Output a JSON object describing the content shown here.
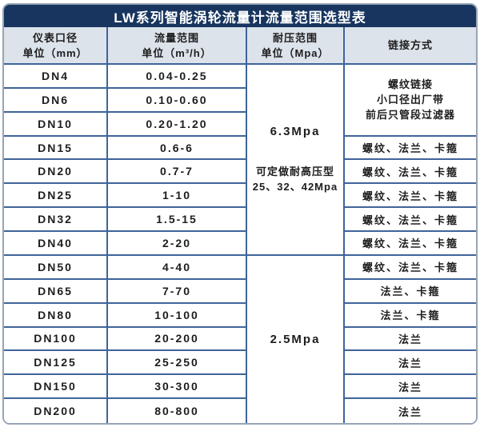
{
  "title": "LW系列智能涡轮流量计流量范围选型表",
  "header": {
    "diameter": [
      "仪表口径",
      "单位（mm）"
    ],
    "flow": [
      "流量范围",
      "单位（m³/h）"
    ],
    "pressure": [
      "耐压范围",
      "单位（Mpa）"
    ],
    "connection": [
      "链接方式"
    ]
  },
  "rows": [
    {
      "dn": "DN4",
      "flow": "0.04-0.25"
    },
    {
      "dn": "DN6",
      "flow": "0.10-0.60"
    },
    {
      "dn": "DN10",
      "flow": "0.20-1.20"
    },
    {
      "dn": "DN15",
      "flow": "0.6-6"
    },
    {
      "dn": "DN20",
      "flow": "0.7-7"
    },
    {
      "dn": "DN25",
      "flow": "1-10"
    },
    {
      "dn": "DN32",
      "flow": "1.5-15"
    },
    {
      "dn": "DN40",
      "flow": "2-20"
    },
    {
      "dn": "DN50",
      "flow": "4-40"
    },
    {
      "dn": "DN65",
      "flow": "7-70"
    },
    {
      "dn": "DN80",
      "flow": "10-100"
    },
    {
      "dn": "DN100",
      "flow": "20-200"
    },
    {
      "dn": "DN125",
      "flow": "25-250"
    },
    {
      "dn": "DN150",
      "flow": "30-300"
    },
    {
      "dn": "DN200",
      "flow": "80-800"
    }
  ],
  "pressure": {
    "high": {
      "value": "6.3Mpa",
      "note1": "可定做耐高压型",
      "note2": "25、32、42Mpa",
      "span_rows": 8
    },
    "low": {
      "value": "2.5Mpa",
      "span_rows": 7
    }
  },
  "connection": {
    "merged": {
      "lines": [
        "螺纹链接",
        "小口径出厂带",
        "前后只管段过滤器"
      ],
      "span_rows": 3
    },
    "cells": [
      "螺纹、法兰、卡箍",
      "螺纹、法兰、卡箍",
      "螺纹、法兰、卡箍",
      "螺纹、法兰、卡箍",
      "螺纹、法兰、卡箍",
      "螺纹、法兰、卡箍",
      "法兰、卡箍",
      "法兰、卡箍",
      "法兰",
      "法兰",
      "法兰",
      "法兰"
    ]
  },
  "colors": {
    "title_bg": "#17355f",
    "title_text": "#ffffff",
    "header_bg": "#dce3eb",
    "grid_line": "#3f649b",
    "cell_bg": "#ffffff",
    "body_text": "#1d1d1d",
    "outer_border": "#97a5b6"
  },
  "chart_data": {
    "type": "table",
    "title": "LW系列智能涡轮流量计流量范围选型表",
    "columns": [
      "仪表口径 单位（mm）",
      "流量范围 单位（m³/h）",
      "耐压范围 单位（Mpa）",
      "链接方式"
    ],
    "rows": [
      [
        "DN4",
        "0.04-0.25",
        "6.3Mpa（可定做耐高压型25、32、42Mpa）",
        "螺纹链接 小口径出厂带 前后只管段过滤器"
      ],
      [
        "DN6",
        "0.10-0.60",
        "6.3Mpa（可定做耐高压型25、32、42Mpa）",
        "螺纹链接 小口径出厂带 前后只管段过滤器"
      ],
      [
        "DN10",
        "0.20-1.20",
        "6.3Mpa（可定做耐高压型25、32、42Mpa）",
        "螺纹链接 小口径出厂带 前后只管段过滤器"
      ],
      [
        "DN15",
        "0.6-6",
        "6.3Mpa（可定做耐高压型25、32、42Mpa）",
        "螺纹、法兰、卡箍"
      ],
      [
        "DN20",
        "0.7-7",
        "6.3Mpa（可定做耐高压型25、32、42Mpa）",
        "螺纹、法兰、卡箍"
      ],
      [
        "DN25",
        "1-10",
        "6.3Mpa（可定做耐高压型25、32、42Mpa）",
        "螺纹、法兰、卡箍"
      ],
      [
        "DN32",
        "1.5-15",
        "6.3Mpa（可定做耐高压型25、32、42Mpa）",
        "螺纹、法兰、卡箍"
      ],
      [
        "DN40",
        "2-20",
        "6.3Mpa（可定做耐高压型25、32、42Mpa）",
        "螺纹、法兰、卡箍"
      ],
      [
        "DN50",
        "4-40",
        "2.5Mpa",
        "螺纹、法兰、卡箍"
      ],
      [
        "DN65",
        "7-70",
        "2.5Mpa",
        "法兰、卡箍"
      ],
      [
        "DN80",
        "10-100",
        "2.5Mpa",
        "法兰、卡箍"
      ],
      [
        "DN100",
        "20-200",
        "2.5Mpa",
        "法兰"
      ],
      [
        "DN125",
        "25-250",
        "2.5Mpa",
        "法兰"
      ],
      [
        "DN150",
        "30-300",
        "2.5Mpa",
        "法兰"
      ],
      [
        "DN200",
        "80-800",
        "2.5Mpa",
        "法兰"
      ]
    ]
  }
}
